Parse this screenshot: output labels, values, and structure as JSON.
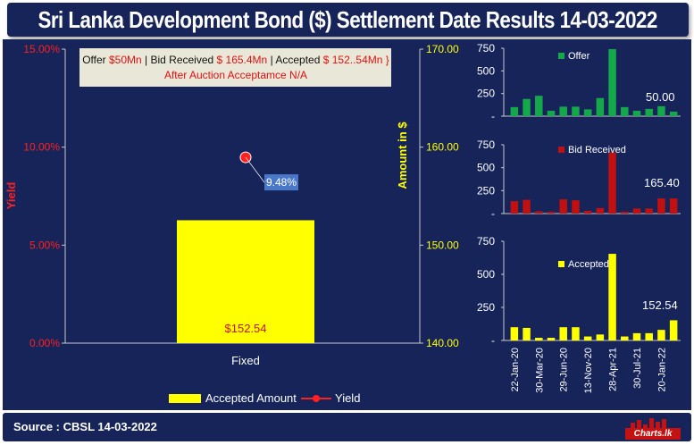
{
  "title": "Sri Lanka Development Bond ($) Settlement Date Results 14-03-2022",
  "footer": {
    "source": "Source : CBSL 14-03-2022",
    "logo_text": "Charts.lk"
  },
  "info_box": {
    "offer_prefix": "Offer ",
    "offer_value": "$50Mn",
    "bid_prefix": " | Bid Received ",
    "bid_value": "$ 165.4Mn",
    "accepted_prefix": " | Accepted ",
    "accepted_value": "$ 152..54Mn }",
    "line2": "After Auction Acceptamce N/A"
  },
  "colors": {
    "background": "#16245a",
    "yield": "#ff2020",
    "accepted": "#ffff00",
    "offer": "#14a84b",
    "bid": "#c01010",
    "label_box": "#4a78c8"
  },
  "chart_data": [
    {
      "type": "bar",
      "title": "",
      "categories": [
        "Fixed"
      ],
      "series": [
        {
          "name": "Accepted Amount",
          "axis": "right",
          "values": [
            152.54
          ]
        },
        {
          "name": "Yield",
          "axis": "left",
          "values": [
            9.48
          ]
        }
      ],
      "data_labels": {
        "accepted": "$152.54",
        "yield": "9.48%"
      },
      "ylabel": "Yield",
      "y2label": "Amount in $",
      "ylim": [
        0,
        15
      ],
      "y2lim": [
        140,
        170
      ],
      "yticks": [
        "0.00%",
        "5.00%",
        "10.00%",
        "15.00%"
      ],
      "y2ticks": [
        "140.00",
        "150.00",
        "160.00",
        "170.00"
      ],
      "legend": [
        "Accepted Amount",
        "Yield"
      ],
      "legend_position": "bottom"
    },
    {
      "type": "bar",
      "title": "",
      "series": [
        {
          "name": "Offer",
          "values": [
            100,
            190,
            225,
            60,
            105,
            105,
            75,
            200,
            740,
            100,
            60,
            80,
            110,
            50
          ]
        }
      ],
      "last_label": "50.00",
      "ylim": [
        0,
        750
      ],
      "yticks": [
        "",
        "250",
        "500",
        "750"
      ]
    },
    {
      "type": "bar",
      "title": "",
      "series": [
        {
          "name": "Bid Received",
          "values": [
            135,
            150,
            25,
            20,
            155,
            145,
            30,
            60,
            665,
            20,
            55,
            55,
            165,
            165.4
          ]
        }
      ],
      "last_label": "165.40",
      "ylim": [
        0,
        750
      ],
      "yticks": [
        "",
        "250",
        "500",
        "750"
      ]
    },
    {
      "type": "bar",
      "title": "",
      "series": [
        {
          "name": "Accepted",
          "values": [
            100,
            95,
            20,
            20,
            100,
            100,
            30,
            45,
            655,
            30,
            55,
            55,
            80,
            152.54
          ]
        }
      ],
      "last_label": "152.54",
      "ylim": [
        0,
        750
      ],
      "yticks": [
        "",
        "250",
        "500",
        "750"
      ],
      "x_ticks": [
        "22-Jan-20",
        "30-Mar-20",
        "29-Jun-20",
        "13-Nov-20",
        "28-Apr-21",
        "30-Jul-21",
        "20-Jan-22"
      ],
      "x_tick_bar_index": [
        0,
        2,
        4,
        6,
        8,
        10,
        12
      ]
    }
  ]
}
